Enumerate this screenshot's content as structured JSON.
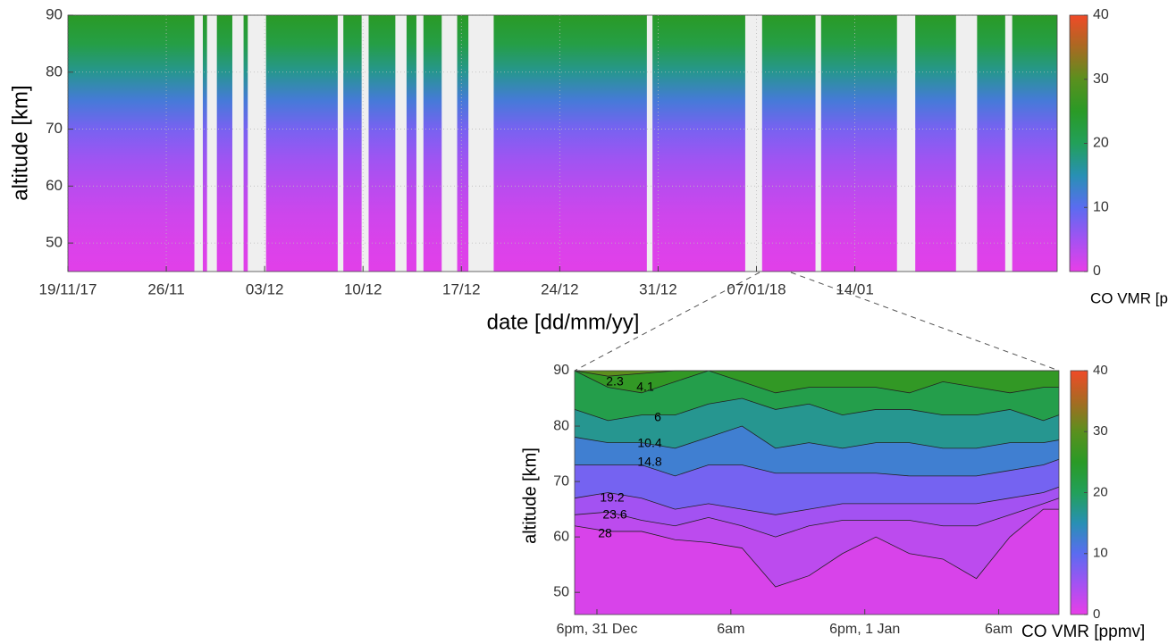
{
  "chart_data": [
    {
      "type": "contour",
      "xlabel": "date [dd/mm/yy]",
      "ylabel": "altitude [km]",
      "colorbar_label": "CO VMR [ppmv]",
      "xlim": [
        0,
        70.4
      ],
      "xticks": [
        {
          "value": 0,
          "label": "19/11/17"
        },
        {
          "value": 7,
          "label": "26/11"
        },
        {
          "value": 14,
          "label": "03/12"
        },
        {
          "value": 21,
          "label": "10/12"
        },
        {
          "value": 28,
          "label": "17/12"
        },
        {
          "value": 35,
          "label": "24/12"
        },
        {
          "value": 42,
          "label": "31/12"
        },
        {
          "value": 49,
          "label": "07/01/18"
        },
        {
          "value": 56,
          "label": "14/01"
        }
      ],
      "ylim": [
        45,
        90
      ],
      "yticks": [
        50,
        60,
        70,
        80,
        90
      ],
      "clim": [
        0,
        40
      ],
      "cticks": [
        0,
        10,
        20,
        30,
        40
      ],
      "colormap": [
        "#e83ee8",
        "#a452f2",
        "#5a6cf0",
        "#2890b4",
        "#22a05a",
        "#2a9a26",
        "#5a901e",
        "#a86a22",
        "#f04a28"
      ],
      "grid": true,
      "profile": {
        "altitude": [
          45,
          50,
          55,
          60,
          65,
          70,
          75,
          80,
          85,
          90
        ],
        "vmr": [
          0.5,
          1,
          2,
          3.5,
          5.5,
          8,
          12,
          17,
          22,
          25
        ]
      },
      "gaps": [
        [
          9.0,
          9.6
        ],
        [
          9.9,
          10.6
        ],
        [
          11.7,
          12.5
        ],
        [
          12.8,
          14.1
        ],
        [
          19.2,
          19.6
        ],
        [
          20.9,
          21.4
        ],
        [
          23.3,
          24.1
        ],
        [
          24.8,
          25.3
        ],
        [
          26.6,
          27.7
        ],
        [
          28.5,
          30.3
        ],
        [
          41.2,
          41.6
        ],
        [
          48.2,
          49.4
        ],
        [
          53.2,
          53.6
        ],
        [
          59.0,
          60.3
        ],
        [
          63.2,
          64.7
        ],
        [
          66.7,
          67.2
        ]
      ]
    },
    {
      "type": "contour",
      "ylabel": "altitude [km]",
      "colorbar_label": "CO VMR [ppmv]",
      "xlim": [
        -2,
        41.4
      ],
      "xticks": [
        {
          "value": 0,
          "label": "6pm, 31 Dec"
        },
        {
          "value": 12,
          "label": "6am"
        },
        {
          "value": 24,
          "label": "6pm, 1 Jan"
        },
        {
          "value": 36,
          "label": "6am"
        }
      ],
      "ylim": [
        46,
        90
      ],
      "yticks": [
        50,
        60,
        70,
        80,
        90
      ],
      "clim": [
        0,
        40
      ],
      "cticks": [
        0,
        10,
        20,
        30,
        40
      ],
      "colormap": [
        "#e83ee8",
        "#a452f2",
        "#5a6cf0",
        "#2890b4",
        "#22a05a",
        "#2a9a26",
        "#5a901e",
        "#a86a22",
        "#f04a28"
      ],
      "x": [
        -2,
        1,
        4,
        7,
        10,
        13,
        16,
        19,
        22,
        25,
        28,
        31,
        34,
        37,
        40,
        41.4
      ],
      "contours": [
        {
          "level": 2.3,
          "altitude": [
            62,
            61,
            61,
            59.5,
            59,
            58,
            51,
            53,
            57,
            60,
            57,
            56,
            52.5,
            60,
            65,
            65
          ]
        },
        {
          "level": 4.1,
          "altitude": [
            64,
            64.5,
            63,
            62,
            63.5,
            62,
            60,
            62,
            63,
            63,
            63,
            62,
            62,
            64,
            66,
            67
          ]
        },
        {
          "level": 6,
          "altitude": [
            67,
            68,
            67,
            65,
            66,
            65,
            64,
            65,
            66,
            66,
            66,
            66,
            66,
            67,
            68,
            69
          ]
        },
        {
          "level": 10.4,
          "altitude": [
            73,
            73,
            73,
            71,
            73,
            73,
            71.5,
            71.5,
            71.5,
            71.5,
            71,
            71,
            71,
            72,
            73,
            74
          ]
        },
        {
          "level": 14.8,
          "altitude": [
            78,
            77,
            77,
            76,
            78,
            80,
            76,
            77,
            76,
            77,
            77,
            76,
            76,
            77,
            77,
            77.5
          ]
        },
        {
          "level": 19.2,
          "altitude": [
            83,
            81,
            82,
            82,
            84,
            85,
            83,
            84,
            82,
            83,
            83,
            82,
            82,
            83,
            81,
            82
          ]
        },
        {
          "level": 23.6,
          "altitude": [
            90,
            87,
            86,
            88,
            90,
            88,
            86,
            87,
            87,
            87,
            86,
            88,
            87,
            86,
            87,
            87
          ]
        },
        {
          "level": 28,
          "altitude": [
            90,
            89,
            89.5,
            90,
            90,
            90,
            90,
            90,
            90,
            90,
            90,
            90,
            90,
            90,
            90,
            90
          ]
        }
      ]
    }
  ]
}
